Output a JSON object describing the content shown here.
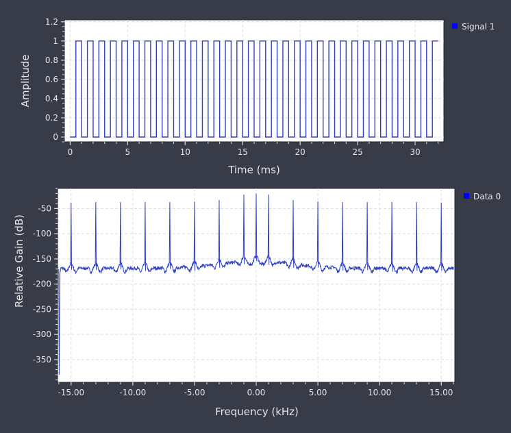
{
  "colors": {
    "background": "#383b48",
    "plot_bg": "#ffffff",
    "trace": "#2f3fc2",
    "legend_marker": "#0000ff",
    "text": "#e6e6e6"
  },
  "chart_data": [
    {
      "type": "line",
      "xlabel": "Time (ms)",
      "ylabel": "Amplitude",
      "xlim": [
        -0.5,
        32.5
      ],
      "ylim": [
        -0.05,
        1.22
      ],
      "xticks": [
        0,
        5,
        10,
        15,
        20,
        25,
        30
      ],
      "xtick_labels": [
        "0",
        "5",
        "10",
        "15",
        "20",
        "25",
        "30"
      ],
      "yticks": [
        0,
        0.2,
        0.4,
        0.6,
        0.8,
        1.0,
        1.2
      ],
      "ytick_labels": [
        "0",
        "0.2",
        "0.4",
        "0.6",
        "0.8",
        "1",
        "1.2"
      ],
      "grid": true,
      "legend_position": "right-top",
      "series": [
        {
          "name": "Signal 1",
          "waveform": "square",
          "period_ms": 1.0,
          "duty_cycle": 0.5,
          "x_start": 0,
          "x_end": 32,
          "first_rise_ms": 0.5,
          "low": 0,
          "high": 1
        }
      ]
    },
    {
      "type": "line",
      "xlabel": "Frequency (kHz)",
      "ylabel": "Relative Gain (dB)",
      "xlim": [
        -16.1,
        16.1
      ],
      "ylim": [
        -395,
        -10
      ],
      "xticks": [
        -15,
        -10,
        -5,
        0,
        5,
        10,
        15
      ],
      "xtick_labels": [
        "-15.00",
        "-10.00",
        "-5.00",
        "0.00",
        "5.00",
        "10.00",
        "15.00"
      ],
      "yticks": [
        -50,
        -100,
        -150,
        -200,
        -250,
        -300,
        -350
      ],
      "ytick_labels": [
        "-50",
        "-100",
        "-150",
        "-200",
        "-250",
        "-300",
        "-350"
      ],
      "grid": true,
      "legend_position": "right-top",
      "series": [
        {
          "name": "Data 0",
          "noise_floor_db": -170,
          "dip": {
            "x": -16,
            "y": -380
          },
          "peaks": [
            {
              "x": -15,
              "y": -38
            },
            {
              "x": -13,
              "y": -37
            },
            {
              "x": -11,
              "y": -37
            },
            {
              "x": -9,
              "y": -37
            },
            {
              "x": -7,
              "y": -37
            },
            {
              "x": -5,
              "y": -36
            },
            {
              "x": -3,
              "y": -33
            },
            {
              "x": -1,
              "y": -22
            },
            {
              "x": 0,
              "y": -20
            },
            {
              "x": 1,
              "y": -22
            },
            {
              "x": 3,
              "y": -33
            },
            {
              "x": 5,
              "y": -36
            },
            {
              "x": 7,
              "y": -37
            },
            {
              "x": 9,
              "y": -37
            },
            {
              "x": 11,
              "y": -37
            },
            {
              "x": 13,
              "y": -37
            },
            {
              "x": 15,
              "y": -38
            }
          ]
        }
      ]
    }
  ]
}
